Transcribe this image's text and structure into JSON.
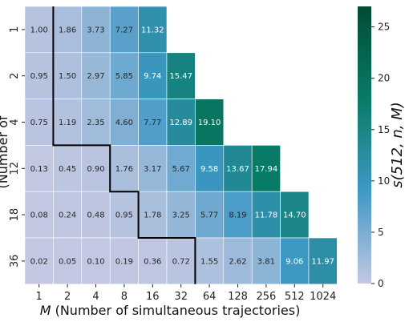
{
  "chart_data": {
    "type": "heatmap",
    "title": "",
    "x_categories": [
      "1",
      "2",
      "4",
      "8",
      "16",
      "32",
      "64",
      "128",
      "256",
      "512",
      "1024"
    ],
    "y_categories": [
      "1",
      "2",
      "4",
      "12",
      "18",
      "36"
    ],
    "xlabel_var": "M",
    "xlabel_rest": " (Number of simultaneous trajectories)",
    "ylabel_visible": "(Number of",
    "colorbar_label": "s(512, n, M)",
    "colorbar_range": [
      0,
      27
    ],
    "colorbar_ticks": [
      0,
      5,
      10,
      15,
      20,
      25
    ],
    "colormap": [
      "#c4c8e2",
      "#3f98c5",
      "#087b66",
      "#024c35"
    ],
    "values": [
      [
        1.0,
        1.86,
        3.73,
        7.27,
        11.32,
        null,
        null,
        null,
        null,
        null,
        null
      ],
      [
        0.95,
        1.5,
        2.97,
        5.85,
        9.74,
        15.47,
        null,
        null,
        null,
        null,
        null
      ],
      [
        0.75,
        1.19,
        2.35,
        4.6,
        7.77,
        12.89,
        19.1,
        null,
        null,
        null,
        null
      ],
      [
        0.13,
        0.45,
        0.9,
        1.76,
        3.17,
        5.67,
        9.58,
        13.67,
        17.94,
        null,
        null
      ],
      [
        0.08,
        0.24,
        0.48,
        0.95,
        1.78,
        3.25,
        5.77,
        8.19,
        11.78,
        14.7,
        null
      ],
      [
        0.02,
        0.05,
        0.1,
        0.19,
        0.36,
        0.72,
        1.55,
        2.62,
        3.81,
        9.06,
        11.97
      ]
    ],
    "labels": [
      [
        "1.00",
        "1.86",
        "3.73",
        "7.27",
        "11.32",
        "",
        "",
        "",
        "",
        "",
        ""
      ],
      [
        "0.95",
        "1.50",
        "2.97",
        "5.85",
        "9.74",
        "15.47",
        "",
        "",
        "",
        "",
        ""
      ],
      [
        "0.75",
        "1.19",
        "2.35",
        "4.60",
        "7.77",
        "12.89",
        "19.10",
        "",
        "",
        "",
        ""
      ],
      [
        "0.13",
        "0.45",
        "0.90",
        "1.76",
        "3.17",
        "5.67",
        "9.58",
        "13.67",
        "17.94",
        "",
        ""
      ],
      [
        "0.08",
        "0.24",
        "0.48",
        "0.95",
        "1.78",
        "3.25",
        "5.77",
        "8.19",
        "11.78",
        "14.70",
        ""
      ],
      [
        "0.02",
        "0.05",
        "0.10",
        "0.19",
        "0.36",
        "0.72",
        "1.55",
        "2.62",
        "3.81",
        "9.06",
        "11.97"
      ]
    ],
    "boundary_cols_per_row": [
      1,
      1,
      1,
      3,
      4,
      6
    ],
    "boundary_color": "#000000"
  }
}
